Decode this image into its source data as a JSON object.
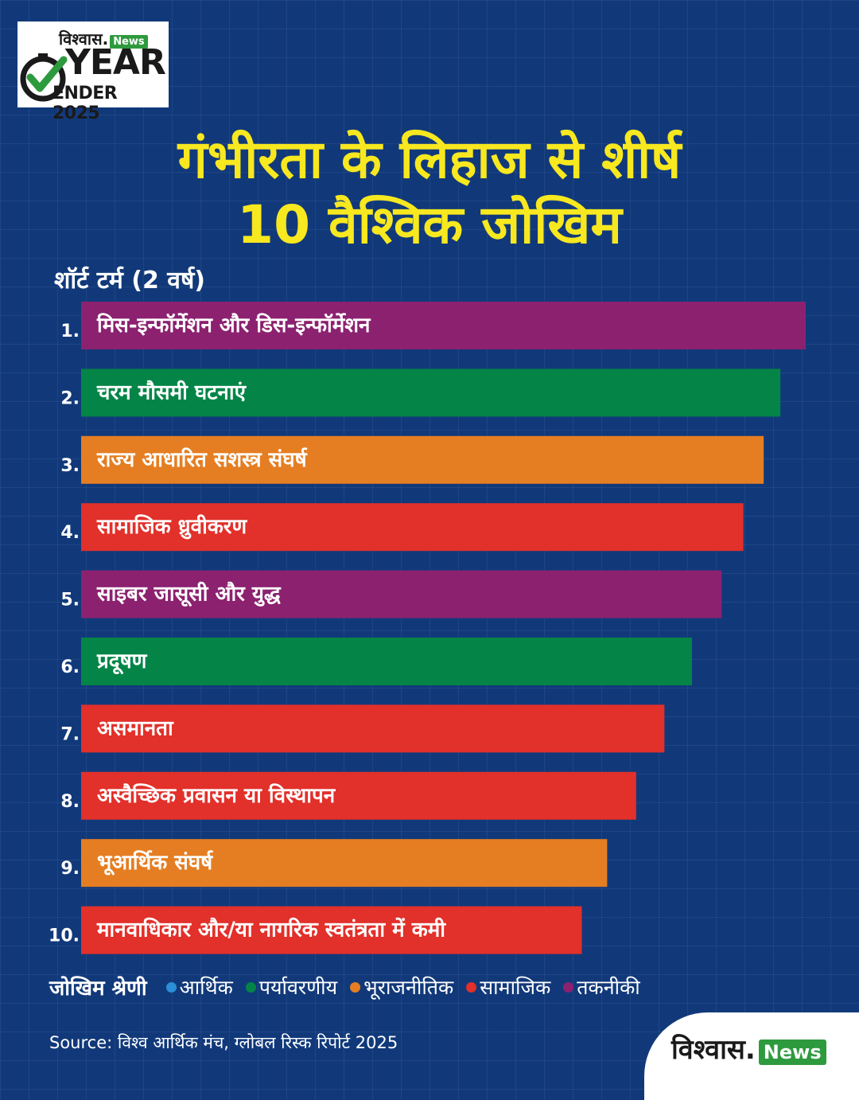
{
  "logo": {
    "brand": "विश्वास.",
    "news_tag": "News",
    "year": "YEAR",
    "ender": "ENDER 2025",
    "check_icon": "check-clock-icon"
  },
  "header": {
    "title_line1": "गंभीरता के लिहाज से शीर्ष",
    "title_line2": "10 वैश्विक जोखिम",
    "subtitle": "शॉर्ट टर्म (2 वर्ष)"
  },
  "colors": {
    "आर्थिक": "#2a8fd6",
    "पर्यावरणीय": "#048547",
    "भूराजनीतिक": "#e57e22",
    "सामाजिक": "#e2302a",
    "तकनीकी": "#8c2170"
  },
  "chart_data": {
    "type": "bar",
    "orientation": "horizontal",
    "title": "गंभीरता के लिहाज से शीर्ष 10 वैश्विक जोखिम",
    "subtitle": "शॉर्ट टर्म (2 वर्ष)",
    "bars": [
      {
        "rank": "1.",
        "label": "मिस-इन्फॉर्मेशन और डिस-इन्फॉर्मेशन",
        "category": "तकनीकी",
        "value": 100
      },
      {
        "rank": "2.",
        "label": "चरम मौसमी घटनाएं",
        "category": "पर्यावरणीय",
        "value": 96.5
      },
      {
        "rank": "3.",
        "label": "राज्य आधारित सशस्त्र संघर्ष",
        "category": "भूराजनीतिक",
        "value": 94.2
      },
      {
        "rank": "4.",
        "label": "सामाजिक ध्रुवीकरण",
        "category": "सामाजिक",
        "value": 91.4
      },
      {
        "rank": "5.",
        "label": "साइबर जासूसी और युद्ध",
        "category": "तकनीकी",
        "value": 88.4
      },
      {
        "rank": "6.",
        "label": "प्रदूषण",
        "category": "पर्यावरणीय",
        "value": 84.3
      },
      {
        "rank": "7.",
        "label": "असमानता",
        "category": "सामाजिक",
        "value": 80.5
      },
      {
        "rank": "8.",
        "label": "अस्वैच्छिक प्रवासन या विस्थापन",
        "category": "सामाजिक",
        "value": 76.6
      },
      {
        "rank": "9.",
        "label": "भूआर्थिक संघर्ष",
        "category": "भूराजनीतिक",
        "value": 72.6
      },
      {
        "rank": "10.",
        "label": "मानवाधिकार और/या नागरिक स्वतंत्रता में कमी",
        "category": "सामाजिक",
        "value": 69.1
      }
    ],
    "xlim": [
      0,
      100
    ]
  },
  "legend": {
    "title": "जोखिम श्रेणी",
    "items": [
      {
        "label": "आर्थिक",
        "color": "#2a8fd6"
      },
      {
        "label": "पर्यावरणीय",
        "color": "#048547"
      },
      {
        "label": "भूराजनीतिक",
        "color": "#e57e22"
      },
      {
        "label": "सामाजिक",
        "color": "#e2302a"
      },
      {
        "label": "तकनीकी",
        "color": "#8c2170"
      }
    ]
  },
  "footer": {
    "source": "Source: विश्व आर्थिक मंच, ग्लोबल रिस्क रिपोर्ट 2025",
    "brand": "विश्वास.",
    "brand_news": "News"
  }
}
